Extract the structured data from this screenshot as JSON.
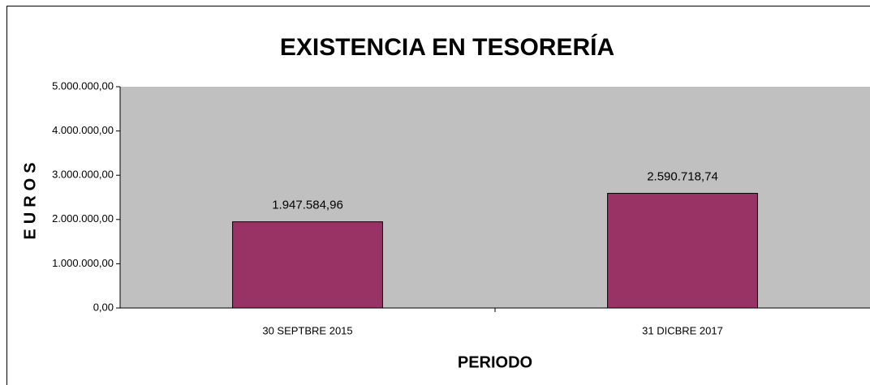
{
  "chart_data": {
    "type": "bar",
    "title": "EXISTENCIA EN TESORERÍA",
    "x_label": "PERIODO",
    "y_label": "EUROS",
    "categories": [
      "30 SEPTBRE 2015",
      "31 DICBRE 2017"
    ],
    "values": [
      1947584.96,
      2590718.74
    ],
    "value_labels": [
      "1.947.584,96",
      "2.590.718,74"
    ],
    "color": "#993366",
    "plot_background": "#c0c0c0",
    "ylim": [
      0,
      5000000
    ],
    "yticks": [
      {
        "value": 0,
        "label": "0,00"
      },
      {
        "value": 1000000,
        "label": "1.000.000,00"
      },
      {
        "value": 2000000,
        "label": "2.000.000,00"
      },
      {
        "value": 3000000,
        "label": "3.000.000,00"
      },
      {
        "value": 4000000,
        "label": "4.000.000,00"
      },
      {
        "value": 5000000,
        "label": "5.000.000,00"
      }
    ]
  }
}
